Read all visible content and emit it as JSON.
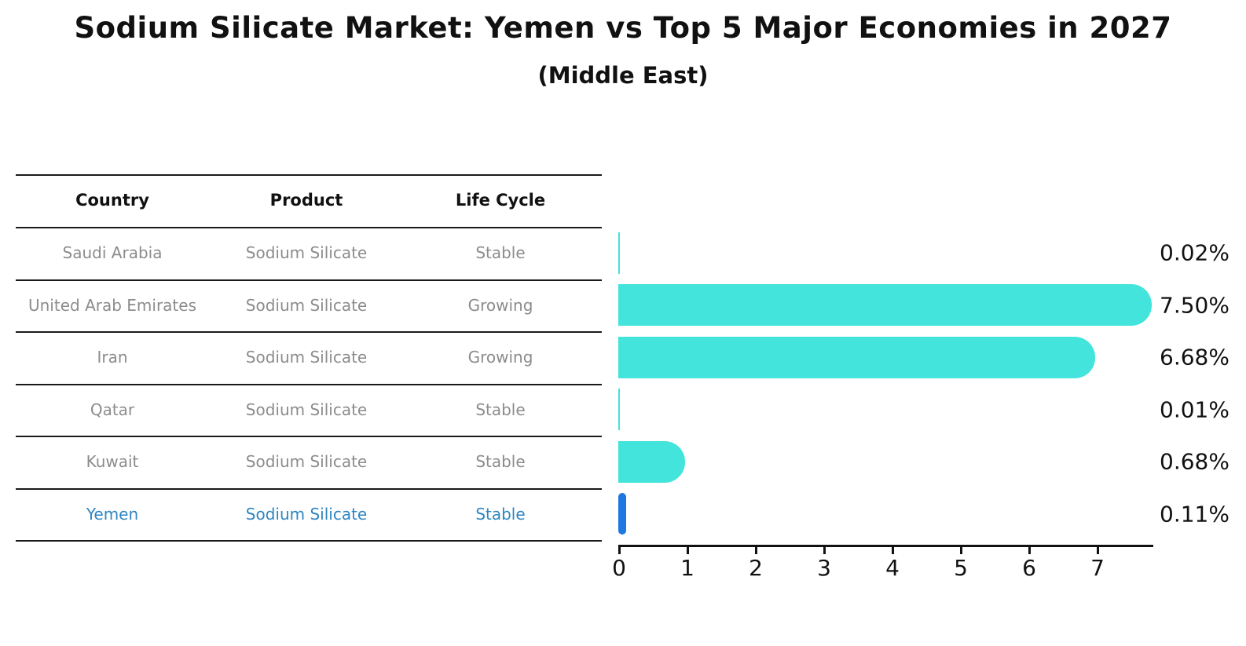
{
  "title": "Sodium Silicate Market: Yemen vs Top 5 Major Economies in 2027",
  "subtitle": "(Middle East)",
  "table": {
    "headers": [
      "Country",
      "Product",
      "Life Cycle"
    ],
    "rows": [
      {
        "country": "Saudi Arabia",
        "product": "Sodium Silicate",
        "life_cycle": "Stable",
        "highlight": false
      },
      {
        "country": "United Arab Emirates",
        "product": "Sodium Silicate",
        "life_cycle": "Growing",
        "highlight": false
      },
      {
        "country": "Iran",
        "product": "Sodium Silicate",
        "life_cycle": "Growing",
        "highlight": false
      },
      {
        "country": "Qatar",
        "product": "Sodium Silicate",
        "life_cycle": "Stable",
        "highlight": false
      },
      {
        "country": "Kuwait",
        "product": "Sodium Silicate",
        "life_cycle": "Stable",
        "highlight": false
      },
      {
        "country": "Yemen",
        "product": "Sodium Silicate",
        "life_cycle": "Stable",
        "highlight": true
      }
    ]
  },
  "chart_data": {
    "type": "bar",
    "orientation": "horizontal",
    "title": "Sodium Silicate Market: Yemen vs Top 5 Major Economies in 2027",
    "subtitle": "(Middle East)",
    "categories": [
      "Saudi Arabia",
      "United Arab Emirates",
      "Iran",
      "Qatar",
      "Kuwait",
      "Yemen"
    ],
    "values": [
      0.02,
      7.5,
      6.68,
      0.01,
      0.68,
      0.11
    ],
    "value_labels": [
      "0.02%",
      "7.50%",
      "6.68%",
      "0.01%",
      "0.68%",
      "0.11%"
    ],
    "x_ticks": [
      "0",
      "1",
      "2",
      "3",
      "4",
      "5",
      "6",
      "7"
    ],
    "xlim": [
      0,
      7.8
    ],
    "grid": false,
    "legend": false,
    "bar_color": "#42E4DC",
    "highlight_color": "#1E78E0",
    "highlight_index": 5,
    "axis_color": "#111111",
    "value_label_color": "#111111",
    "row_text_color": "#8C8C8C",
    "highlight_text_color": "#2E86C1"
  }
}
